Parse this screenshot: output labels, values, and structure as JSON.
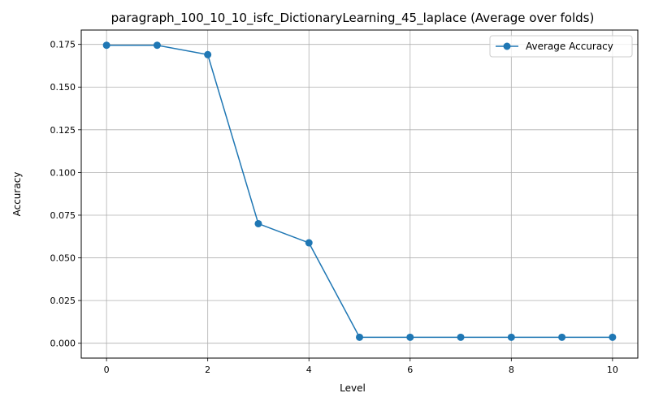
{
  "chart_data": {
    "type": "line",
    "title": "paragraph_100_10_10_isfc_DictionaryLearning_45_laplace (Average over folds)",
    "xlabel": "Level",
    "ylabel": "Accuracy",
    "xlim": [
      -0.5,
      10.5
    ],
    "ylim": [
      -0.0087,
      0.1834
    ],
    "x_ticks": [
      0,
      2,
      4,
      6,
      8,
      10
    ],
    "y_ticks": [
      0.0,
      0.025,
      0.05,
      0.075,
      0.1,
      0.125,
      0.15,
      0.175
    ],
    "y_tick_labels": [
      "0.000",
      "0.025",
      "0.050",
      "0.075",
      "0.100",
      "0.125",
      "0.150",
      "0.175"
    ],
    "grid": true,
    "legend_position": "top-right",
    "series": [
      {
        "name": "Average Accuracy",
        "color": "#1f77b4",
        "marker": "circle",
        "x": [
          0,
          1,
          2,
          3,
          4,
          5,
          6,
          7,
          8,
          9,
          10
        ],
        "y": [
          0.1745,
          0.1745,
          0.169,
          0.07,
          0.0588,
          0.0035,
          0.0035,
          0.0035,
          0.0035,
          0.0035,
          0.0035
        ]
      }
    ]
  }
}
